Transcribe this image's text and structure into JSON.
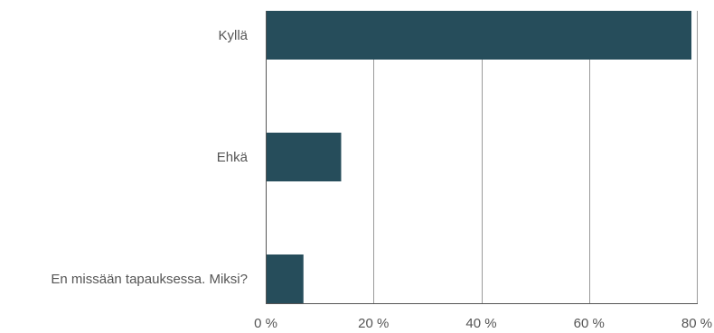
{
  "chart_data": {
    "type": "bar",
    "orientation": "horizontal",
    "categories": [
      "Kyllä",
      "Ehkä",
      "En missään tapauksessa. Miksi?"
    ],
    "values": [
      79,
      14,
      7
    ],
    "xlim": [
      0,
      80
    ],
    "xticks": [
      0,
      20,
      40,
      60,
      80
    ],
    "xtick_labels": [
      "0 %",
      "20 %",
      "40 %",
      "60 %",
      "80 %"
    ],
    "title": "",
    "xlabel": "",
    "ylabel": "",
    "grid": "vertical",
    "legend": "none",
    "bar_color": "#264d5b"
  }
}
